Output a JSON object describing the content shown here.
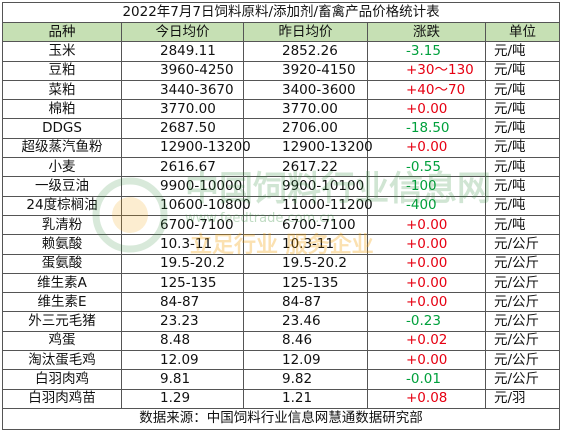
{
  "title": "2022年7月7日饲料原料/添加剂/畜禽产品价格统计表",
  "headers": [
    "品种",
    "今日均价",
    "昨日均价",
    "涨跌",
    "单位"
  ],
  "rows": [
    {
      "name": "玉米",
      "today": "2849.11",
      "yesterday": "2852.26",
      "change": "-3.15",
      "unit": "元/吨"
    },
    {
      "name": "豆粕",
      "today": "3960-4250",
      "yesterday": "3920-4150",
      "change": "+30～130",
      "unit": "元/吨"
    },
    {
      "name": "菜粕",
      "today": "3440-3670",
      "yesterday": "3400-3600",
      "change": "+40～70",
      "unit": "元/吨"
    },
    {
      "name": "棉粕",
      "today": "3770.00",
      "yesterday": "3770.00",
      "change": "+0.00",
      "unit": "元/吨"
    },
    {
      "name": "DDGS",
      "today": "2687.50",
      "yesterday": "2706.00",
      "change": "-18.50",
      "unit": "元/吨"
    },
    {
      "name": "超级蒸汽鱼粉",
      "today": "12900-13200",
      "yesterday": "12900-13200",
      "change": "+0.00",
      "unit": "元/吨"
    },
    {
      "name": "小麦",
      "today": "2616.67",
      "yesterday": "2617.22",
      "change": "-0.55",
      "unit": "元/吨"
    },
    {
      "name": "一级豆油",
      "today": "9900-10000",
      "yesterday": "9900-10100",
      "change": "-100",
      "unit": "元/吨"
    },
    {
      "name": "24度棕榈油",
      "today": "10600-10800",
      "yesterday": "11000-11200",
      "change": "-400",
      "unit": "元/吨"
    },
    {
      "name": "乳清粉",
      "today": "6700-7100",
      "yesterday": "6700-7100",
      "change": "+0.00",
      "unit": "元/吨"
    },
    {
      "name": "赖氨酸",
      "today": "10.3-11",
      "yesterday": "10.3-11",
      "change": "+0.00",
      "unit": "元/公斤"
    },
    {
      "name": "蛋氨酸",
      "today": "19.5-20.2",
      "yesterday": "19.5-20.2",
      "change": "+0.00",
      "unit": "元/公斤"
    },
    {
      "name": "维生素A",
      "today": "125-135",
      "yesterday": "125-135",
      "change": "+0.00",
      "unit": "元/公斤"
    },
    {
      "name": "维生素E",
      "today": "84-87",
      "yesterday": "84-87",
      "change": "+0.00",
      "unit": "元/公斤"
    },
    {
      "name": "外三元毛猪",
      "today": "23.23",
      "yesterday": "23.46",
      "change": "-0.23",
      "unit": "元/公斤"
    },
    {
      "name": "鸡蛋",
      "today": "8.48",
      "yesterday": "8.46",
      "change": "+0.02",
      "unit": "元/公斤"
    },
    {
      "name": "淘汰蛋毛鸡",
      "today": "12.09",
      "yesterday": "12.09",
      "change": "+0.00",
      "unit": "元/公斤"
    },
    {
      "name": "白羽肉鸡",
      "today": "9.81",
      "yesterday": "9.82",
      "change": "-0.01",
      "unit": "元/公斤"
    },
    {
      "name": "白羽肉鸡苗",
      "today": "1.29",
      "yesterday": "1.21",
      "change": "+0.08",
      "unit": "元/羽"
    }
  ],
  "footer": "数据来源：中国饲料行业信息网慧通数据研究部",
  "watermark": {
    "line1": "中国饲料行业信息网",
    "line2": "www.feedtrade.com.cn",
    "line3": "立足行业 服务企业"
  },
  "colors": {
    "header_bg": "#c6e0b4",
    "up": "#e60012",
    "down": "#00a03c"
  }
}
